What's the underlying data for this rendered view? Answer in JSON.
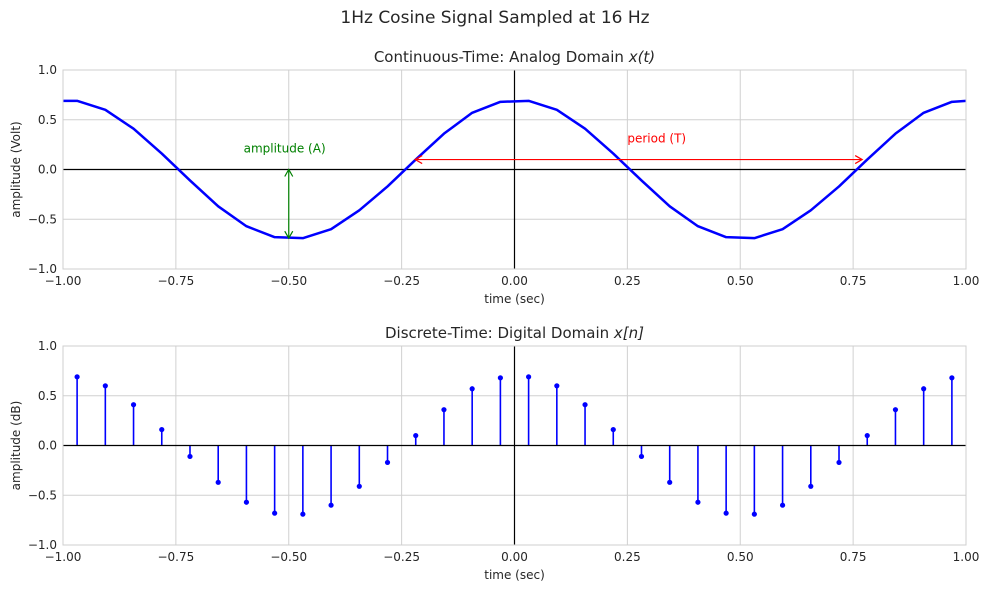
{
  "figure": {
    "suptitle": "1Hz Cosine Signal Sampled at 16 Hz"
  },
  "chart_data": [
    {
      "type": "line",
      "title": "Continuous-Time: Analog Domain x(t)",
      "title_prefix": "Continuous-Time: Analog Domain ",
      "title_math": "x(t)",
      "xlabel": "time (sec)",
      "ylabel": "amplitude (Volt)",
      "xlim": [
        -1.0,
        1.0
      ],
      "ylim": [
        -1.0,
        1.0
      ],
      "xticks": [
        "−1.00",
        "−0.75",
        "−0.50",
        "−0.25",
        "0.00",
        "0.25",
        "0.50",
        "0.75",
        "1.00"
      ],
      "yticks": [
        "1.0",
        "0.5",
        "0.0",
        "−0.5",
        "−1.0"
      ],
      "grid": true,
      "series": [
        {
          "color": "#0000ff",
          "x": [
            -1.0,
            -0.96875,
            -0.90625,
            -0.84375,
            -0.78125,
            -0.71875,
            -0.65625,
            -0.59375,
            -0.53125,
            -0.46875,
            -0.40625,
            -0.34375,
            -0.28125,
            -0.21875,
            -0.15625,
            -0.09375,
            -0.03125,
            0.03125,
            0.09375,
            0.15625,
            0.21875,
            0.28125,
            0.34375,
            0.40625,
            0.46875,
            0.53125,
            0.59375,
            0.65625,
            0.71875,
            0.78125,
            0.84375,
            0.90625,
            0.96875,
            1.0
          ],
          "y": [
            0.69,
            0.69,
            0.6,
            0.41,
            0.16,
            -0.11,
            -0.37,
            -0.57,
            -0.68,
            -0.69,
            -0.6,
            -0.41,
            -0.17,
            0.1,
            0.36,
            0.57,
            0.68,
            0.69,
            0.6,
            0.41,
            0.16,
            -0.11,
            -0.37,
            -0.57,
            -0.68,
            -0.69,
            -0.6,
            -0.41,
            -0.17,
            0.1,
            0.36,
            0.57,
            0.68,
            0.69
          ]
        }
      ],
      "annotations": [
        {
          "text": "amplitude (A)",
          "color": "#008000",
          "text_at": [
            -0.6,
            0.17
          ],
          "arrow_from": [
            -0.5,
            0.0
          ],
          "arrow_to": [
            -0.5,
            -0.69
          ],
          "style": "double-arrow-vertical"
        },
        {
          "text": "period (T)",
          "color": "#ff0000",
          "text_at": [
            0.25,
            0.27
          ],
          "arrow_from": [
            -0.22,
            0.1
          ],
          "arrow_to": [
            0.77,
            0.1
          ],
          "style": "double-arrow-horizontal"
        }
      ]
    },
    {
      "type": "stem",
      "title": "Discrete-Time: Digital Domain x[n]",
      "title_prefix": "Discrete-Time: Digital Domain ",
      "title_math": "x[n]",
      "xlabel": "time (sec)",
      "ylabel": "amplitude (dB)",
      "xlim": [
        -1.0,
        1.0
      ],
      "ylim": [
        -1.0,
        1.0
      ],
      "xticks": [
        "−1.00",
        "−0.75",
        "−0.50",
        "−0.25",
        "0.00",
        "0.25",
        "0.50",
        "0.75",
        "1.00"
      ],
      "yticks": [
        "1.0",
        "0.5",
        "0.0",
        "−0.5",
        "−1.0"
      ],
      "grid": true,
      "series": [
        {
          "color": "#0000ff",
          "x": [
            -0.96875,
            -0.90625,
            -0.84375,
            -0.78125,
            -0.71875,
            -0.65625,
            -0.59375,
            -0.53125,
            -0.46875,
            -0.40625,
            -0.34375,
            -0.28125,
            -0.21875,
            -0.15625,
            -0.09375,
            -0.03125,
            0.03125,
            0.09375,
            0.15625,
            0.21875,
            0.28125,
            0.34375,
            0.40625,
            0.46875,
            0.53125,
            0.59375,
            0.65625,
            0.71875,
            0.78125,
            0.84375,
            0.90625,
            0.96875
          ],
          "y": [
            0.69,
            0.6,
            0.41,
            0.16,
            -0.11,
            -0.37,
            -0.57,
            -0.68,
            -0.69,
            -0.6,
            -0.41,
            -0.17,
            0.1,
            0.36,
            0.57,
            0.68,
            0.69,
            0.6,
            0.41,
            0.16,
            -0.11,
            -0.37,
            -0.57,
            -0.68,
            -0.69,
            -0.6,
            -0.41,
            -0.17,
            0.1,
            0.36,
            0.57,
            0.68
          ]
        }
      ]
    }
  ]
}
